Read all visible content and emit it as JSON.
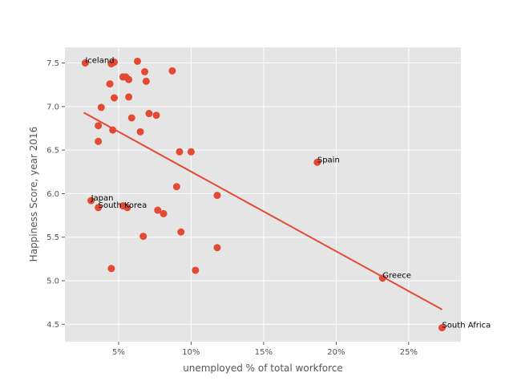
{
  "chart_data": {
    "type": "scatter",
    "xlabel": "unemployed % of total workforce",
    "ylabel": "Happiness Score, year 2016",
    "xlim": [
      1.3,
      28.6
    ],
    "ylim": [
      4.3,
      7.68
    ],
    "x_tick_values": [
      5,
      10,
      15,
      20,
      25
    ],
    "x_tick_labels": [
      "5%",
      "10%",
      "15%",
      "20%",
      "25%"
    ],
    "y_tick_values": [
      4.5,
      5.0,
      5.5,
      6.0,
      6.5,
      7.0,
      7.5
    ],
    "y_tick_labels": [
      "4.5",
      "5.0",
      "5.5",
      "6.0",
      "6.5",
      "7.0",
      "7.5"
    ],
    "grid": true,
    "colors": {
      "panel": "#E5E5E5",
      "grid": "#FFFFFF",
      "point": "#E24A33",
      "line": "#E24A33"
    },
    "points": [
      {
        "x": 2.7,
        "y": 7.5
      },
      {
        "x": 4.5,
        "y": 7.49
      },
      {
        "x": 4.7,
        "y": 7.51
      },
      {
        "x": 6.3,
        "y": 7.52
      },
      {
        "x": 8.7,
        "y": 7.41
      },
      {
        "x": 6.8,
        "y": 7.4
      },
      {
        "x": 5.3,
        "y": 7.34
      },
      {
        "x": 5.5,
        "y": 7.34
      },
      {
        "x": 5.7,
        "y": 7.31
      },
      {
        "x": 6.9,
        "y": 7.29
      },
      {
        "x": 4.4,
        "y": 7.26
      },
      {
        "x": 4.7,
        "y": 7.1
      },
      {
        "x": 5.7,
        "y": 7.11
      },
      {
        "x": 3.8,
        "y": 6.99
      },
      {
        "x": 7.1,
        "y": 6.92
      },
      {
        "x": 7.6,
        "y": 6.9
      },
      {
        "x": 5.9,
        "y": 6.87
      },
      {
        "x": 3.6,
        "y": 6.78
      },
      {
        "x": 4.6,
        "y": 6.73
      },
      {
        "x": 6.5,
        "y": 6.71
      },
      {
        "x": 3.6,
        "y": 6.6
      },
      {
        "x": 9.2,
        "y": 6.48
      },
      {
        "x": 10.0,
        "y": 6.48
      },
      {
        "x": 18.7,
        "y": 6.36
      },
      {
        "x": 9.0,
        "y": 6.08
      },
      {
        "x": 11.8,
        "y": 5.98
      },
      {
        "x": 3.1,
        "y": 5.92
      },
      {
        "x": 3.6,
        "y": 5.84
      },
      {
        "x": 5.3,
        "y": 5.86
      },
      {
        "x": 5.6,
        "y": 5.84
      },
      {
        "x": 7.7,
        "y": 5.81
      },
      {
        "x": 8.1,
        "y": 5.77
      },
      {
        "x": 9.3,
        "y": 5.56
      },
      {
        "x": 6.7,
        "y": 5.51
      },
      {
        "x": 11.8,
        "y": 5.38
      },
      {
        "x": 4.5,
        "y": 5.14
      },
      {
        "x": 10.3,
        "y": 5.12
      },
      {
        "x": 23.2,
        "y": 5.03
      },
      {
        "x": 27.3,
        "y": 4.46
      }
    ],
    "trend_line": {
      "x": [
        2.6,
        27.3
      ],
      "y": [
        6.93,
        4.67
      ]
    },
    "annotations": [
      {
        "text": "Iceland",
        "x": 2.7,
        "y": 7.5
      },
      {
        "text": "Spain",
        "x": 18.7,
        "y": 6.36
      },
      {
        "text": "Japan",
        "x": 3.1,
        "y": 5.92
      },
      {
        "text": "South Korea",
        "x": 3.6,
        "y": 5.84
      },
      {
        "text": "Greece",
        "x": 23.2,
        "y": 5.03
      },
      {
        "text": "South Africa",
        "x": 27.3,
        "y": 4.46
      }
    ]
  }
}
